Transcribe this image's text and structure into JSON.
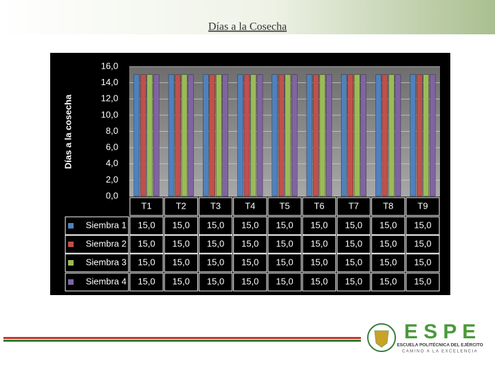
{
  "chart_data": {
    "type": "bar",
    "title": "Días a la Cosecha",
    "y_label": "Días a la cosecha",
    "categories": [
      "T1",
      "T2",
      "T3",
      "T4",
      "T5",
      "T6",
      "T7",
      "T8",
      "T9"
    ],
    "series": [
      {
        "name": "Siembra 1",
        "color": "#4f81bd",
        "values": [
          15,
          15,
          15,
          15,
          15,
          15,
          15,
          15,
          15
        ],
        "value_labels": [
          "15,0",
          "15,0",
          "15,0",
          "15,0",
          "15,0",
          "15,0",
          "15,0",
          "15,0",
          "15,0"
        ]
      },
      {
        "name": "Siembra 2",
        "color": "#c0504d",
        "values": [
          15,
          15,
          15,
          15,
          15,
          15,
          15,
          15,
          15
        ],
        "value_labels": [
          "15,0",
          "15,0",
          "15,0",
          "15,0",
          "15,0",
          "15,0",
          "15,0",
          "15,0",
          "15,0"
        ]
      },
      {
        "name": "Siembra 3",
        "color": "#9bbb59",
        "values": [
          15,
          15,
          15,
          15,
          15,
          15,
          15,
          15,
          15
        ],
        "value_labels": [
          "15,0",
          "15,0",
          "15,0",
          "15,0",
          "15,0",
          "15,0",
          "15,0",
          "15,0",
          "15,0"
        ]
      },
      {
        "name": "Siembra 4",
        "color": "#8064a2",
        "values": [
          15,
          15,
          15,
          15,
          15,
          15,
          15,
          15,
          15
        ],
        "value_labels": [
          "15,0",
          "15,0",
          "15,0",
          "15,0",
          "15,0",
          "15,0",
          "15,0",
          "15,0",
          "15,0"
        ]
      }
    ],
    "ylim": [
      0,
      16
    ],
    "yticks": [
      {
        "value": 0,
        "label": "0,0"
      },
      {
        "value": 2,
        "label": "2,0"
      },
      {
        "value": 4,
        "label": "4,0"
      },
      {
        "value": 6,
        "label": "6,0"
      },
      {
        "value": 8,
        "label": "8,0"
      },
      {
        "value": 10,
        "label": "10,0"
      },
      {
        "value": 12,
        "label": "12,0"
      },
      {
        "value": 14,
        "label": "14,0"
      },
      {
        "value": 16,
        "label": "16,0"
      }
    ],
    "grid": true
  },
  "logo": {
    "name": "E S P E",
    "line1": "ESCUELA POLITÉCNICA DEL EJÉRCITO",
    "line2": "CAMINO A LA EXCELENCIA"
  }
}
